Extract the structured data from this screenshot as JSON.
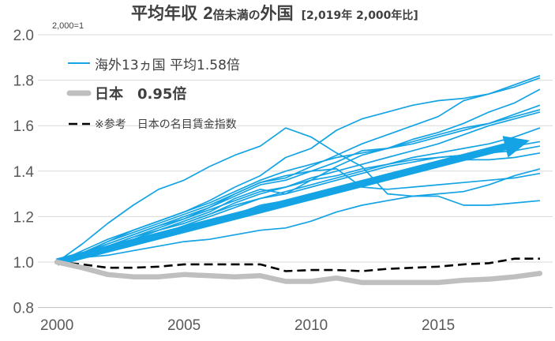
{
  "chart_data": {
    "type": "line",
    "title_parts": [
      "平均年収 ",
      "2",
      "倍未満の",
      "外国"
    ],
    "subtitle": "[2,019年 2,000年比]",
    "ylabel": "2,000=1",
    "x": [
      2000,
      2001,
      2002,
      2003,
      2004,
      2005,
      2006,
      2007,
      2008,
      2009,
      2010,
      2011,
      2012,
      2013,
      2014,
      2015,
      2016,
      2017,
      2018,
      2019
    ],
    "xlim": [
      1999.25,
      2019.5
    ],
    "ylim": [
      0.8,
      2.0
    ],
    "xtick_labels": [
      "2000",
      "2005",
      "2010",
      "2015"
    ],
    "ytick_labels": [
      "0.8",
      "1.0",
      "1.2",
      "1.4",
      "1.6",
      "1.8",
      "2.0"
    ],
    "grid": "horizontal",
    "legend_position": "top-left",
    "series": [
      {
        "name": "海外13ヵ国 平均1.58倍",
        "color": "#14a3e4",
        "line": "solid",
        "lines": [
          [
            1.0,
            1.08,
            1.17,
            1.25,
            1.32,
            1.36,
            1.42,
            1.47,
            1.51,
            1.59,
            1.55,
            1.48,
            1.42,
            1.3,
            1.29,
            1.29,
            1.25,
            1.25,
            1.26,
            1.27
          ],
          [
            1.0,
            1.04,
            1.09,
            1.14,
            1.18,
            1.22,
            1.27,
            1.33,
            1.38,
            1.46,
            1.5,
            1.58,
            1.63,
            1.66,
            1.69,
            1.71,
            1.72,
            1.74,
            1.78,
            1.82
          ],
          [
            1.0,
            1.03,
            1.07,
            1.11,
            1.15,
            1.19,
            1.24,
            1.3,
            1.35,
            1.37,
            1.42,
            1.47,
            1.52,
            1.56,
            1.6,
            1.64,
            1.71,
            1.74,
            1.77,
            1.81
          ],
          [
            1.0,
            1.03,
            1.06,
            1.1,
            1.14,
            1.18,
            1.22,
            1.28,
            1.32,
            1.3,
            1.36,
            1.42,
            1.47,
            1.5,
            1.54,
            1.57,
            1.61,
            1.66,
            1.7,
            1.76
          ],
          [
            1.0,
            1.04,
            1.08,
            1.12,
            1.16,
            1.2,
            1.24,
            1.29,
            1.34,
            1.36,
            1.4,
            1.44,
            1.49,
            1.5,
            1.53,
            1.56,
            1.59,
            1.61,
            1.65,
            1.69
          ],
          [
            1.0,
            1.05,
            1.1,
            1.14,
            1.18,
            1.22,
            1.26,
            1.31,
            1.36,
            1.4,
            1.43,
            1.46,
            1.48,
            1.5,
            1.52,
            1.55,
            1.58,
            1.61,
            1.64,
            1.67
          ],
          [
            1.0,
            1.04,
            1.07,
            1.11,
            1.14,
            1.17,
            1.21,
            1.26,
            1.3,
            1.33,
            1.37,
            1.4,
            1.43,
            1.46,
            1.49,
            1.52,
            1.56,
            1.6,
            1.63,
            1.66
          ],
          [
            1.0,
            1.03,
            1.06,
            1.09,
            1.12,
            1.16,
            1.2,
            1.24,
            1.28,
            1.31,
            1.34,
            1.37,
            1.4,
            1.43,
            1.46,
            1.48,
            1.5,
            1.52,
            1.55,
            1.59
          ],
          [
            1.0,
            1.04,
            1.08,
            1.12,
            1.16,
            1.19,
            1.23,
            1.27,
            1.31,
            1.33,
            1.36,
            1.38,
            1.41,
            1.43,
            1.45,
            1.46,
            1.47,
            1.49,
            1.51,
            1.53
          ],
          [
            1.0,
            1.03,
            1.07,
            1.1,
            1.14,
            1.17,
            1.21,
            1.25,
            1.28,
            1.3,
            1.33,
            1.36,
            1.39,
            1.42,
            1.44,
            1.46,
            1.47,
            1.48,
            1.49,
            1.51
          ],
          [
            1.0,
            1.02,
            1.05,
            1.08,
            1.11,
            1.14,
            1.17,
            1.21,
            1.25,
            1.27,
            1.29,
            1.32,
            1.35,
            1.38,
            1.41,
            1.44,
            1.45,
            1.45,
            1.46,
            1.48
          ],
          [
            1.0,
            1.02,
            1.03,
            1.05,
            1.07,
            1.09,
            1.1,
            1.12,
            1.14,
            1.15,
            1.18,
            1.22,
            1.25,
            1.27,
            1.29,
            1.3,
            1.31,
            1.34,
            1.38,
            1.41
          ],
          [
            1.0,
            1.04,
            1.09,
            1.13,
            1.17,
            1.21,
            1.25,
            1.3,
            1.35,
            1.38,
            1.4,
            1.41,
            1.33,
            1.32,
            1.33,
            1.34,
            1.35,
            1.36,
            1.37,
            1.39
          ]
        ]
      },
      {
        "name": "日本　0.95倍",
        "color": "#bfbfbf",
        "line": "solid",
        "values": [
          1.0,
          0.975,
          0.945,
          0.935,
          0.935,
          0.945,
          0.94,
          0.935,
          0.94,
          0.915,
          0.915,
          0.93,
          0.91,
          0.91,
          0.91,
          0.91,
          0.92,
          0.925,
          0.935,
          0.95
        ]
      },
      {
        "name": "※参考　日本の名目賃金指数",
        "color": "#000000",
        "line": "dashed",
        "values": [
          1.0,
          0.99,
          0.975,
          0.975,
          0.98,
          0.99,
          0.99,
          0.99,
          0.99,
          0.96,
          0.965,
          0.965,
          0.96,
          0.97,
          0.975,
          0.98,
          0.99,
          0.995,
          1.015,
          1.015
        ]
      }
    ],
    "trend_arrow": {
      "from": [
        2000,
        1.0
      ],
      "to": [
        2018.6,
        1.535
      ],
      "color": "#14a3e4"
    }
  }
}
